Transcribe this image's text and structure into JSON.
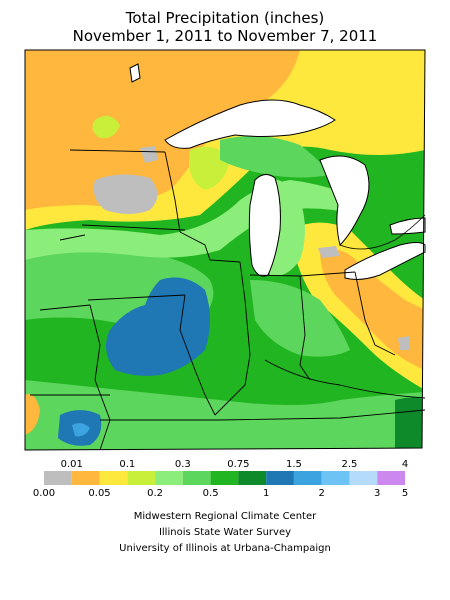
{
  "header": {
    "title_line1": "Total Precipitation (inches)",
    "title_line2": "November 1, 2011 to November 7, 2011"
  },
  "legend": {
    "bins": [
      {
        "color": "#bebebe"
      },
      {
        "color": "#ffb73d"
      },
      {
        "color": "#ffe83d"
      },
      {
        "color": "#c8f03a"
      },
      {
        "color": "#8cee7a"
      },
      {
        "color": "#5cd65c"
      },
      {
        "color": "#22b522"
      },
      {
        "color": "#0e8a2a"
      },
      {
        "color": "#1f78b4"
      },
      {
        "color": "#3aa3e0"
      },
      {
        "color": "#6ec3f5"
      },
      {
        "color": "#b4dcfa"
      },
      {
        "color": "#cc88ee"
      }
    ],
    "top_labels": [
      "0.01",
      "0.1",
      "0.3",
      "0.75",
      "1.5",
      "2.5",
      "4"
    ],
    "bottom_labels": [
      "0.00",
      "0.05",
      "0.2",
      "0.5",
      "1",
      "2",
      "3",
      "5"
    ]
  },
  "credits": {
    "line1": "Midwestern Regional Climate Center",
    "line2": "Illinois State Water Survey",
    "line3": "University of Illinois at Urbana-Champaign"
  },
  "map": {
    "background_color": "#22b522",
    "regions": [
      {
        "name": "northwest-dry",
        "color": "#ffb73d"
      },
      {
        "name": "upper-michigan-wet",
        "color": "#5cd65c"
      },
      {
        "name": "ohio-dry",
        "color": "#ffb73d"
      },
      {
        "name": "illinois-heavy",
        "color": "#1f78b4"
      },
      {
        "name": "missouri-heavy",
        "color": "#1f78b4"
      }
    ]
  }
}
